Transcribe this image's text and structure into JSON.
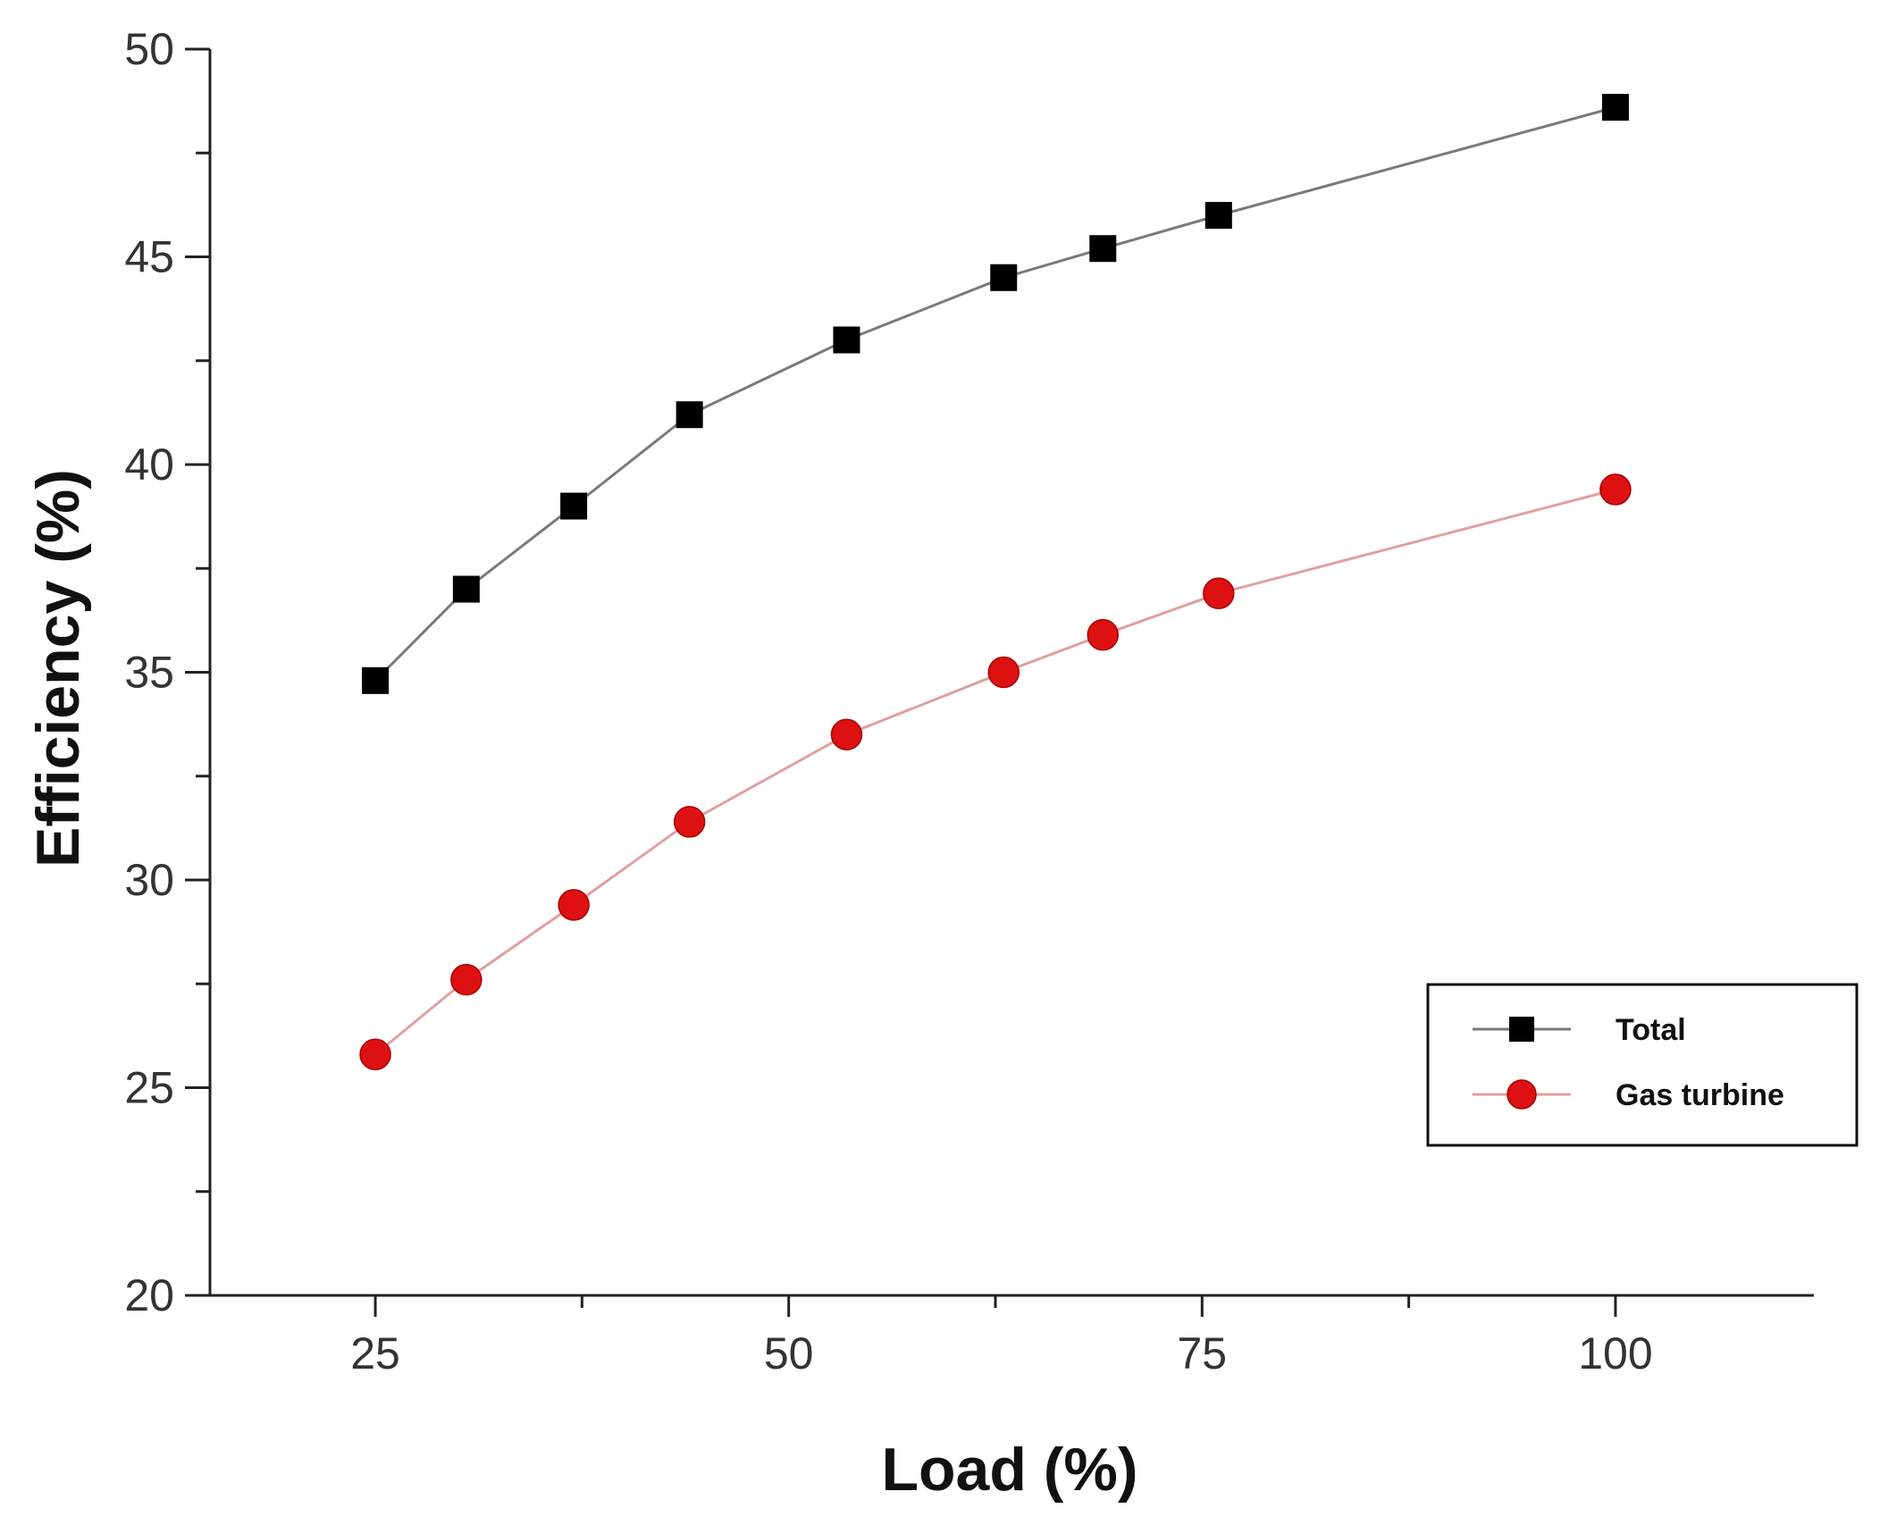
{
  "chart_data": {
    "type": "line",
    "title": "",
    "xlabel": "Load (%)",
    "ylabel": "Efficiency (%)",
    "xlim": [
      15,
      112
    ],
    "ylim": [
      20,
      50
    ],
    "xticks": [
      25,
      50,
      75,
      100
    ],
    "yticks": [
      20,
      25,
      30,
      35,
      40,
      45,
      50
    ],
    "x": [
      25,
      30.5,
      37,
      44,
      53.5,
      63,
      69,
      76,
      100
    ],
    "series": [
      {
        "name": "Total",
        "marker": "square",
        "color": "#000000",
        "line_color": "#7a7a7a",
        "values": [
          34.8,
          37.0,
          39.0,
          41.2,
          43.0,
          44.5,
          45.2,
          46.0,
          48.6
        ]
      },
      {
        "name": "Gas turbine",
        "marker": "circle",
        "color": "#dd1111",
        "line_color": "#e0a0a0",
        "values": [
          25.8,
          27.6,
          29.4,
          31.4,
          33.5,
          35.0,
          35.9,
          36.9,
          39.4
        ]
      }
    ],
    "grid": false,
    "legend_position": "lower-right"
  }
}
